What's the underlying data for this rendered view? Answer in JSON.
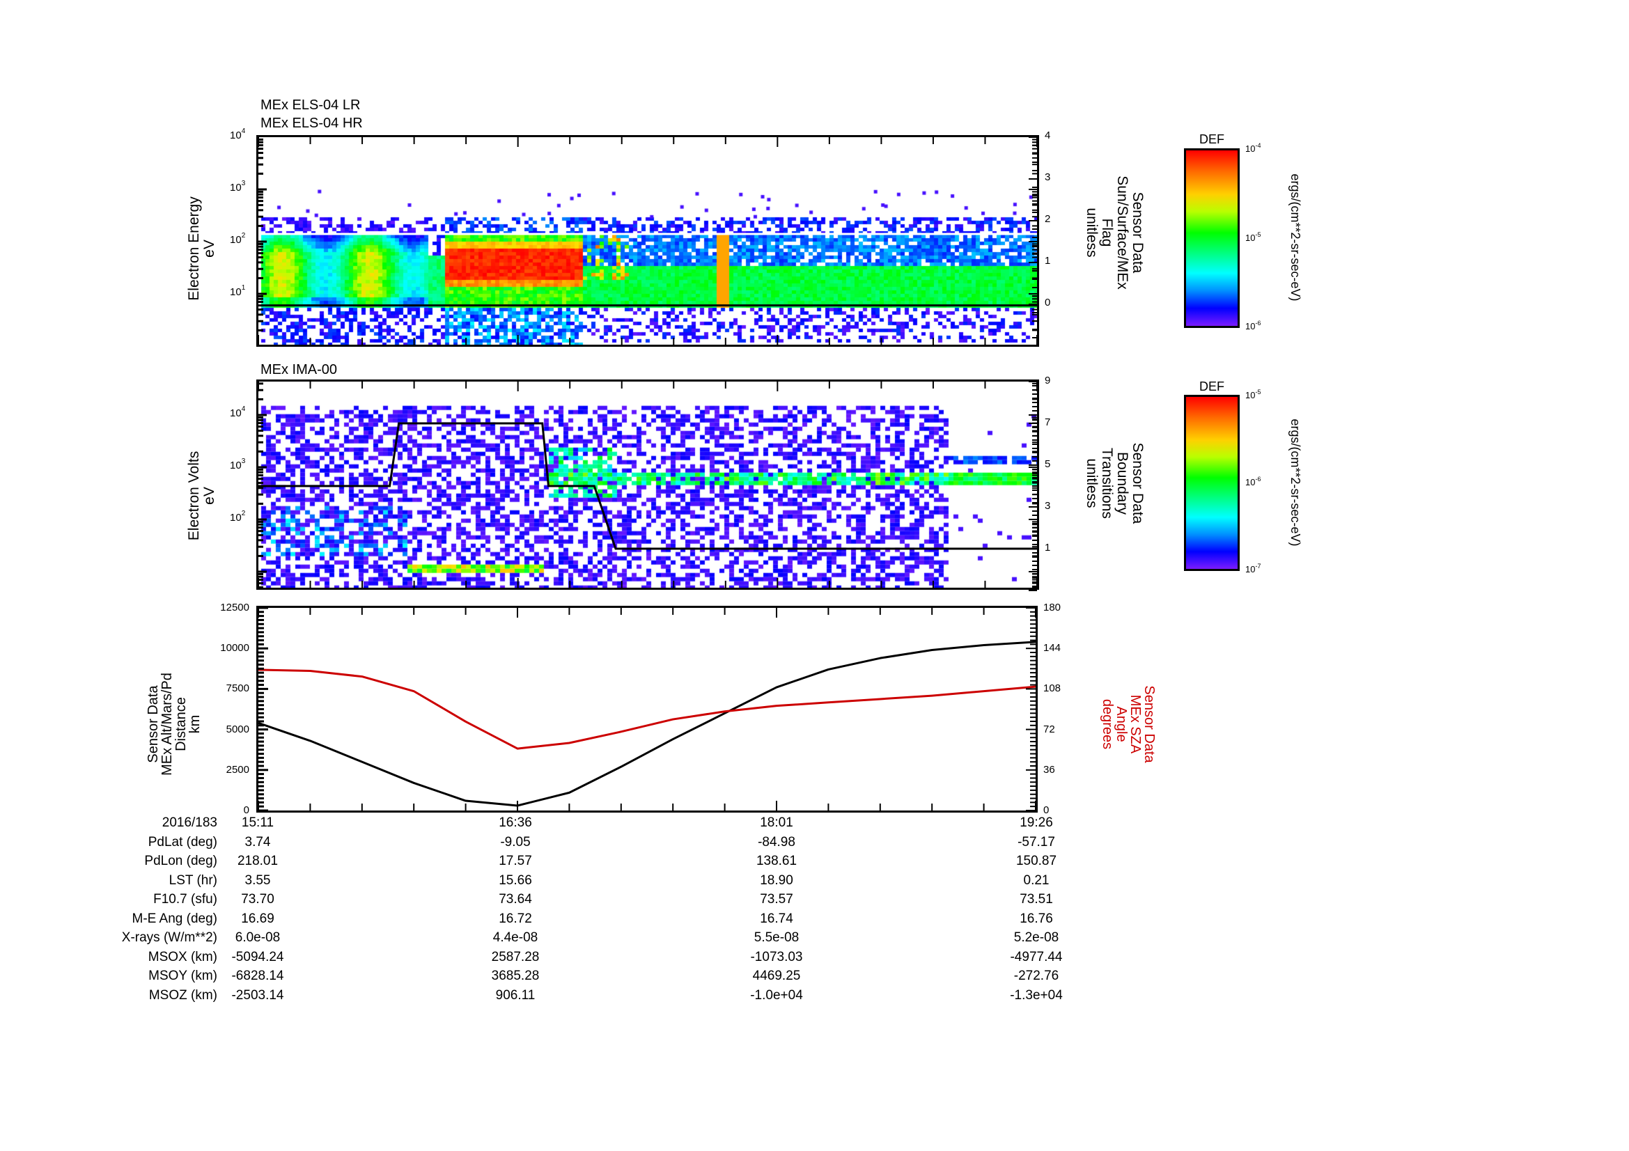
{
  "chart_data": [
    {
      "type": "heatmap",
      "title": [
        "MEx ELS-04 LR",
        "MEx ELS-04 HR"
      ],
      "ylabel": [
        "Electron Energy",
        "eV"
      ],
      "yscale": "log",
      "ylim": [
        1,
        10000
      ],
      "yticks": [
        "10^1",
        "10^2",
        "10^3",
        "10^4"
      ],
      "y2label": [
        "Sensor Data",
        "Sun/Surface/MEx",
        "Flag",
        "unitless"
      ],
      "y2lim": [
        -1,
        4
      ],
      "y2ticks": [
        "0",
        "1",
        "2",
        "3",
        "4"
      ],
      "overlay_lines": [
        {
          "name": "flag-level-0 (black)",
          "value_y2": 0,
          "color": "#000000"
        },
        {
          "name": "flag-level-upper (white)",
          "value_eV": 140,
          "color": "#ffffff"
        }
      ],
      "colorbar": {
        "title": "DEF",
        "units": "ergs/(cm**2-sr-sec-eV)",
        "min": "1e-6",
        "max": "1e-4",
        "ticks": [
          "10^-4",
          "10^-5",
          "10^-6"
        ]
      },
      "features": [
        {
          "time_range": [
            "15:11",
            "16:06"
          ],
          "energy_eV": [
            6,
            140
          ],
          "level": "green-yellow"
        },
        {
          "time_range": [
            "16:12",
            "16:55"
          ],
          "energy_eV": [
            12,
            120
          ],
          "level": "red (~1e-4)"
        },
        {
          "time_range": [
            "16:55",
            "19:26"
          ],
          "energy_eV": [
            6,
            30
          ],
          "level": "green"
        },
        {
          "time_range": [
            "17:41",
            "17:43"
          ],
          "energy_eV": [
            10,
            130
          ],
          "level": "orange spike"
        }
      ]
    },
    {
      "type": "heatmap",
      "title": "MEx IMA-00",
      "ylabel": [
        "Electron Volts",
        "eV"
      ],
      "yscale": "log",
      "ylim": [
        5,
        50000
      ],
      "yticks": [
        "10^2",
        "10^3",
        "10^4"
      ],
      "y2label": [
        "Sensor Data",
        "Boundary",
        "Transitions",
        "unitless"
      ],
      "y2lim": [
        -1,
        9
      ],
      "y2ticks": [
        "1",
        "3",
        "5",
        "7",
        "9"
      ],
      "boundary_line": {
        "color": "#000000",
        "points": [
          [
            "15:11",
            4
          ],
          [
            "15:54",
            4
          ],
          [
            "15:57",
            7
          ],
          [
            "16:44",
            7
          ],
          [
            "16:46",
            4
          ],
          [
            "17:01",
            4
          ],
          [
            "17:08",
            1
          ],
          [
            "19:26",
            1
          ]
        ]
      },
      "colorbar": {
        "title": "DEF",
        "units": "ergs/(cm**2-sr-sec-eV)",
        "min": "1e-7",
        "max": "1e-5",
        "ticks": [
          "10^-5",
          "10^-6",
          "10^-7"
        ]
      },
      "features": [
        {
          "time_range": [
            "15:11",
            "18:56"
          ],
          "energy_eV": [
            8,
            15000
          ],
          "level": "sparse purple/blue noise"
        },
        {
          "time_range": [
            "15:59",
            "16:44"
          ],
          "energy_eV": [
            10,
            14
          ],
          "level": "green-yellow band"
        },
        {
          "time_range": [
            "16:46",
            "18:56"
          ],
          "energy_eV": [
            500,
            900
          ],
          "level": "green/yellow striped band"
        },
        {
          "time_range": [
            "19:01",
            "19:26"
          ],
          "energy_eV": [
            500,
            1800
          ],
          "level": "green band"
        },
        {
          "time_range": [
            "18:56",
            "19:26"
          ],
          "energy_eV": [
            8,
            15000
          ],
          "level": "mostly empty"
        }
      ]
    },
    {
      "type": "line",
      "ylabel": [
        "Sensor Data",
        "MEx Alt/Mars/Pd",
        "Distance",
        "km"
      ],
      "ylim": [
        0,
        12500
      ],
      "yticks": [
        0,
        2500,
        5000,
        7500,
        10000,
        12500
      ],
      "y2label": [
        "Sensor Data",
        "MEx SZA",
        "Angle",
        "degrees"
      ],
      "y2lim": [
        0,
        180
      ],
      "y2ticks": [
        0,
        36,
        72,
        108,
        144,
        180
      ],
      "x": [
        "15:11",
        "15:28",
        "15:45",
        "16:02",
        "16:19",
        "16:36",
        "16:53",
        "17:10",
        "17:27",
        "17:44",
        "18:01",
        "18:18",
        "18:35",
        "18:52",
        "19:09",
        "19:26"
      ],
      "series": [
        {
          "name": "MEx Alt/Mars/Pd Distance (km)",
          "color": "#000000",
          "axis": "left",
          "values": [
            5400,
            4300,
            3000,
            1700,
            600,
            300,
            1100,
            2700,
            4400,
            6000,
            7600,
            8700,
            9400,
            9900,
            10200,
            10400
          ]
        },
        {
          "name": "MEx SZA Angle (deg)",
          "color": "#cc0000",
          "axis": "right",
          "values": [
            125,
            124,
            119,
            106,
            79,
            55,
            60,
            70,
            81,
            88,
            93,
            96,
            99,
            102,
            106,
            110
          ]
        }
      ]
    }
  ],
  "xaxis": {
    "ticks": [
      "15:11",
      "16:36",
      "18:01",
      "19:26"
    ]
  },
  "ephemeris_table": {
    "rows": [
      {
        "label": "2016/183",
        "values": [
          "15:11",
          "16:36",
          "18:01",
          "19:26"
        ]
      },
      {
        "label": "PdLat (deg)",
        "values": [
          "3.74",
          "-9.05",
          "-84.98",
          "-57.17"
        ]
      },
      {
        "label": "PdLon (deg)",
        "values": [
          "218.01",
          "17.57",
          "138.61",
          "150.87"
        ]
      },
      {
        "label": "LST (hr)",
        "values": [
          "3.55",
          "15.66",
          "18.90",
          "0.21"
        ]
      },
      {
        "label": "F10.7 (sfu)",
        "values": [
          "73.70",
          "73.64",
          "73.57",
          "73.51"
        ]
      },
      {
        "label": "M-E Ang (deg)",
        "values": [
          "16.69",
          "16.72",
          "16.74",
          "16.76"
        ]
      },
      {
        "label": "X-rays (W/m**2)",
        "values": [
          "6.0e-08",
          "4.4e-08",
          "5.5e-08",
          "5.2e-08"
        ]
      },
      {
        "label": "MSOX (km)",
        "values": [
          "-5094.24",
          "2587.28",
          "-1073.03",
          "-4977.44"
        ]
      },
      {
        "label": "MSOY (km)",
        "values": [
          "-6828.14",
          "3685.28",
          "4469.25",
          "-272.76"
        ]
      },
      {
        "label": "MSOZ (km)",
        "values": [
          "-2503.14",
          "906.11",
          "-1.0e+04",
          "-1.3e+04"
        ]
      }
    ]
  },
  "labels": {
    "p1_title_1": "MEx ELS-04 LR",
    "p1_title_2": "MEx ELS-04 HR",
    "p1_ylabel_1": "Electron Energy",
    "p1_ylabel_2": "eV",
    "p1_y2label": [
      "Sensor Data",
      "Sun/Surface/MEx",
      "Flag",
      "unitless"
    ],
    "p2_title": "MEx IMA-00",
    "p2_ylabel_1": "Electron Volts",
    "p2_ylabel_2": "eV",
    "p2_y2label": [
      "Sensor Data",
      "Boundary",
      "Transitions",
      "unitless"
    ],
    "p3_ylabel": [
      "Sensor Data",
      "MEx Alt/Mars/Pd",
      "Distance",
      "km"
    ],
    "p3_y2label": [
      "Sensor Data",
      "MEx SZA",
      "Angle",
      "degrees"
    ],
    "cbar_title": "DEF",
    "cbar_units": "ergs/(cm**2-sr-sec-eV)"
  },
  "colors": {
    "sza_red": "#cc0000",
    "alt_black": "#000000",
    "boundary_black": "#000000"
  }
}
